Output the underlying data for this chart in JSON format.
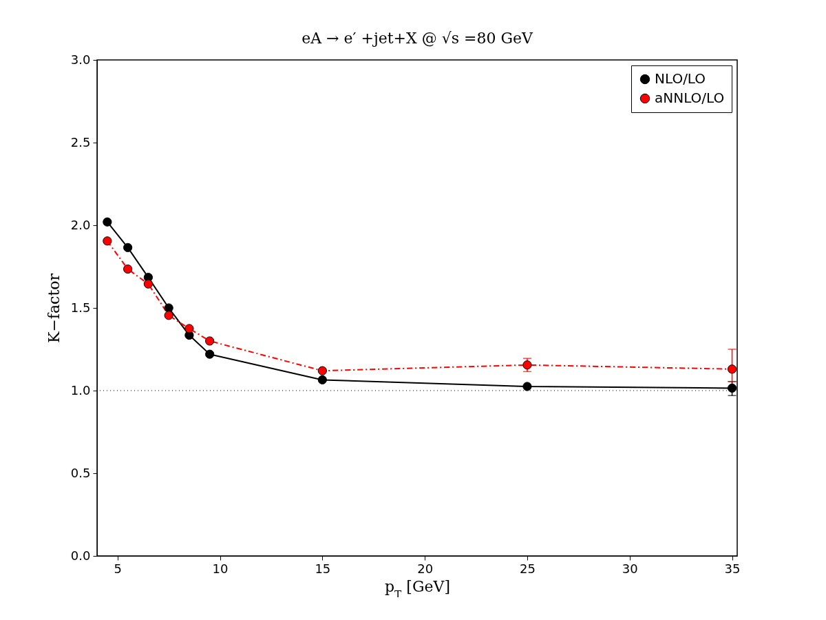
{
  "chart_data": {
    "type": "line",
    "title": "eA → e′ +jet+X @ √s =80 GeV",
    "xlabel": "p$_{T}$ [GeV]",
    "ylabel": "K−factor",
    "x": [
      4.5,
      5.5,
      6.5,
      7.5,
      8.5,
      9.5,
      15,
      25,
      35
    ],
    "series": [
      {
        "name": "NLO/LO",
        "color": "#000000",
        "line_style": "solid",
        "values": [
          2.02,
          1.865,
          1.685,
          1.5,
          1.335,
          1.22,
          1.065,
          1.025,
          1.015
        ],
        "errors": [
          null,
          null,
          null,
          null,
          null,
          null,
          null,
          null,
          [
            0.97,
            1.055
          ]
        ]
      },
      {
        "name": "aNNLO/LO",
        "color": "#ff0000",
        "line_style": "dashed",
        "values": [
          1.905,
          1.735,
          1.645,
          1.455,
          1.375,
          1.3,
          1.12,
          1.155,
          1.13
        ],
        "errors": [
          null,
          null,
          null,
          null,
          null,
          null,
          null,
          [
            1.115,
            1.195
          ],
          [
            1.055,
            1.25
          ]
        ]
      }
    ],
    "xlim": [
      4,
      35.25
    ],
    "xticks": [
      5,
      10,
      15,
      20,
      25,
      30,
      35
    ],
    "ylim": [
      0,
      3
    ],
    "yticks": [
      {
        "value": 0,
        "label": "0.0"
      },
      {
        "value": 0.5,
        "label": "0.5"
      },
      {
        "value": 1,
        "label": "1.0"
      },
      {
        "value": 1.5,
        "label": "1.5"
      },
      {
        "value": 2,
        "label": "2.0"
      },
      {
        "value": 2.5,
        "label": "2.5"
      },
      {
        "value": 3,
        "label": "3.0"
      }
    ],
    "ref_lines": [
      {
        "axis": "y",
        "value": 1,
        "line_style": "dotted",
        "color": "#000000"
      }
    ],
    "grid": false,
    "legend": "top right",
    "marker": "circle"
  }
}
